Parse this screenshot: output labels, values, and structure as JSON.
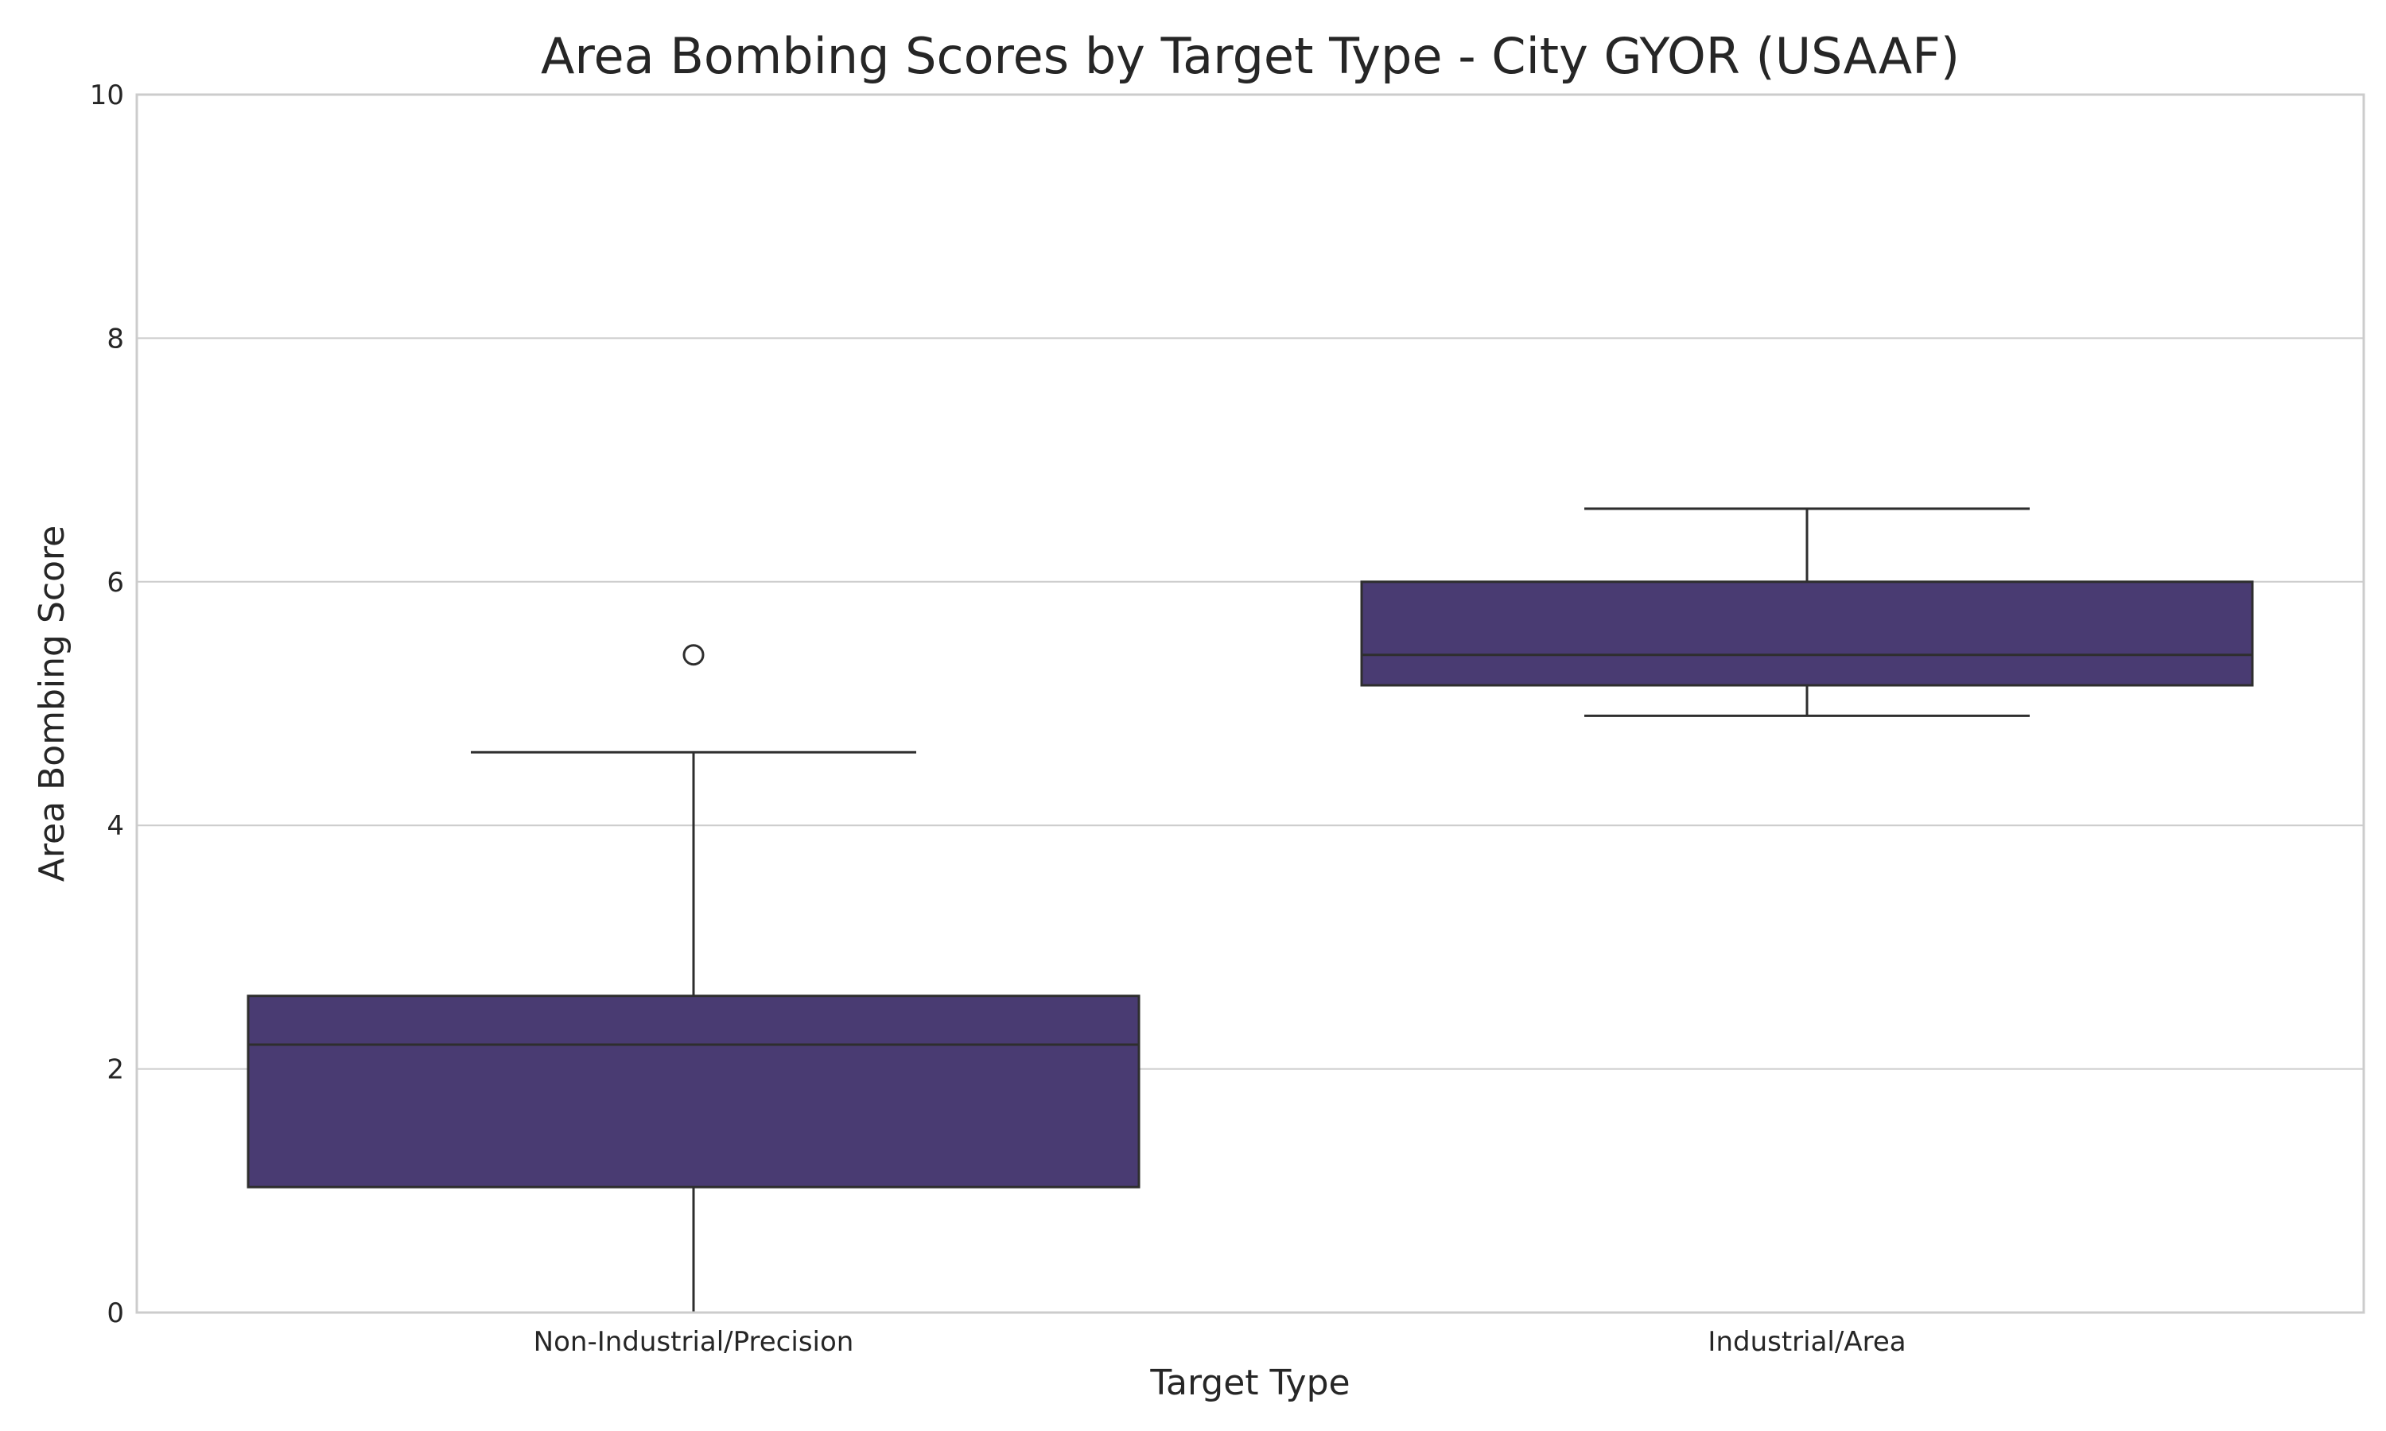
{
  "chart_data": {
    "type": "box",
    "title": "Area Bombing Scores by Target Type - City GYOR (USAAF)",
    "xlabel": "Target Type",
    "ylabel": "Area Bombing Score",
    "ylim": [
      0,
      10
    ],
    "yticks": [
      "0",
      "2",
      "4",
      "6",
      "8",
      "10"
    ],
    "grid": true,
    "box_color": "#493b72",
    "line_color": "#2e2e2e",
    "grid_color": "#cccccc",
    "categories": [
      "Non-Industrial/Precision",
      "Industrial/Area"
    ],
    "boxes": [
      {
        "category": "Non-Industrial/Precision",
        "whisker_low": 0.0,
        "q1": 1.03,
        "median": 2.2,
        "q3": 2.6,
        "whisker_high": 4.6,
        "outliers": [
          5.4
        ]
      },
      {
        "category": "Industrial/Area",
        "whisker_low": 4.9,
        "q1": 5.15,
        "median": 5.4,
        "q3": 6.0,
        "whisker_high": 6.6,
        "outliers": []
      }
    ]
  }
}
